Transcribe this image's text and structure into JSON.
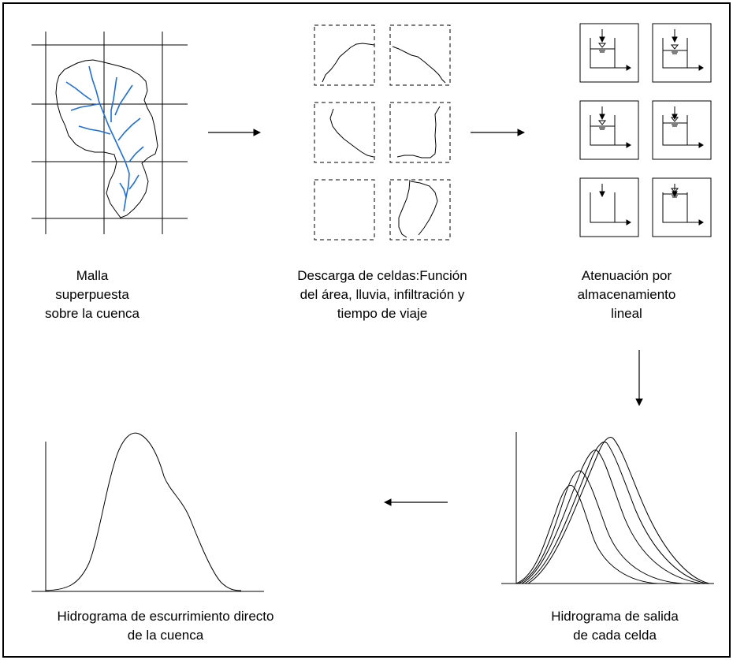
{
  "captions": {
    "grid": [
      "Malla",
      "superpuesta",
      "sobre la cuenca"
    ],
    "cells": [
      "Descarga de celdas:Función",
      "del área, lluvia, infiltración y",
      "tiempo de viaje"
    ],
    "storage": [
      "Atenuación por",
      "almacenamiento",
      "lineal"
    ],
    "cell_hydrographs": [
      "Hidrograma de salida",
      "de cada celda"
    ],
    "basin_hydrograph": [
      "Hidrograma de escurrimiento directo",
      "de la cuenca"
    ]
  },
  "colors": {
    "line": "#000000",
    "river": "#1f6fd6"
  },
  "icons": [
    "watershed-grid",
    "cell-fragments",
    "linear-reservoir",
    "hydrograph"
  ]
}
